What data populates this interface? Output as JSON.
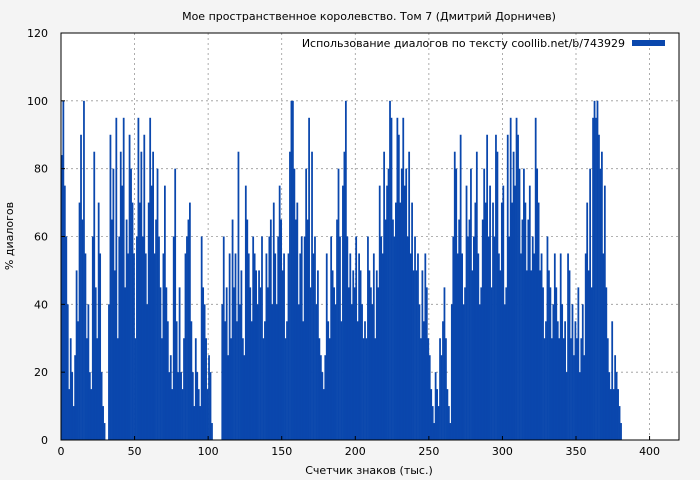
{
  "chart_data": {
    "type": "bar",
    "title": "Мое пространственное королевство. Том 7 (Дмитрий Дорничев)",
    "xlabel": "Счетчик знаков (тыс.)",
    "ylabel": "% диалогов",
    "xlim": [
      0,
      420
    ],
    "ylim": [
      0,
      120
    ],
    "x_ticks": [
      0,
      50,
      100,
      150,
      200,
      250,
      300,
      350,
      400
    ],
    "y_ticks": [
      0,
      20,
      40,
      60,
      80,
      100,
      120
    ],
    "grid": true,
    "legend_position": "top-right",
    "series": [
      {
        "name": "Использование диалогов по тексту coollib.net/b/743929",
        "color": "#0a47ad",
        "bin_width": 1,
        "values": [
          84,
          100,
          75,
          60,
          40,
          15,
          30,
          20,
          10,
          25,
          50,
          35,
          70,
          90,
          65,
          100,
          55,
          30,
          40,
          20,
          15,
          60,
          85,
          45,
          30,
          70,
          55,
          20,
          10,
          5,
          0,
          0,
          40,
          90,
          65,
          80,
          50,
          95,
          30,
          60,
          85,
          75,
          95,
          45,
          65,
          55,
          90,
          80,
          70,
          55,
          30,
          60,
          95,
          70,
          85,
          60,
          90,
          55,
          40,
          70,
          95,
          75,
          85,
          55,
          65,
          80,
          60,
          45,
          30,
          55,
          75,
          45,
          35,
          20,
          25,
          15,
          60,
          80,
          35,
          20,
          45,
          20,
          15,
          30,
          55,
          60,
          65,
          70,
          35,
          20,
          10,
          30,
          20,
          15,
          10,
          60,
          45,
          40,
          30,
          15,
          25,
          20,
          5,
          0,
          0,
          0,
          0,
          0,
          0,
          40,
          60,
          35,
          45,
          25,
          55,
          30,
          65,
          45,
          55,
          35,
          85,
          40,
          50,
          30,
          25,
          75,
          65,
          55,
          45,
          35,
          60,
          55,
          50,
          40,
          50,
          45,
          60,
          30,
          35,
          55,
          45,
          60,
          65,
          40,
          70,
          55,
          40,
          60,
          75,
          65,
          50,
          55,
          30,
          35,
          55,
          85,
          100,
          100,
          80,
          65,
          70,
          40,
          55,
          60,
          35,
          60,
          80,
          65,
          95,
          45,
          85,
          55,
          60,
          40,
          50,
          30,
          25,
          20,
          15,
          25,
          55,
          35,
          30,
          60,
          50,
          45,
          40,
          65,
          80,
          60,
          35,
          75,
          85,
          100,
          60,
          45,
          55,
          40,
          50,
          45,
          60,
          35,
          55,
          50,
          40,
          30,
          35,
          30,
          60,
          50,
          45,
          40,
          55,
          30,
          50,
          45,
          75,
          60,
          55,
          85,
          65,
          75,
          80,
          100,
          95,
          65,
          60,
          70,
          95,
          90,
          70,
          80,
          95,
          75,
          80,
          60,
          85,
          55,
          70,
          50,
          60,
          50,
          55,
          40,
          30,
          50,
          35,
          55,
          45,
          30,
          25,
          15,
          10,
          5,
          20,
          15,
          10,
          30,
          25,
          35,
          45,
          30,
          15,
          10,
          5,
          40,
          60,
          85,
          80,
          55,
          65,
          90,
          55,
          40,
          45,
          75,
          60,
          65,
          80,
          50,
          60,
          70,
          85,
          55,
          40,
          45,
          65,
          80,
          70,
          90,
          60,
          75,
          45,
          70,
          60,
          90,
          85,
          55,
          50,
          70,
          75,
          40,
          45,
          90,
          60,
          95,
          70,
          85,
          75,
          95,
          90,
          80,
          55,
          65,
          80,
          70,
          50,
          65,
          75,
          50,
          60,
          55,
          95,
          80,
          70,
          50,
          55,
          45,
          30,
          35,
          60,
          50,
          45,
          30,
          40,
          55,
          45,
          35,
          30,
          55,
          40,
          30,
          35,
          20,
          55,
          50,
          30,
          40,
          25,
          35,
          30,
          45,
          20,
          30,
          40,
          25,
          55,
          70,
          50,
          80,
          45,
          95,
          100,
          95,
          100,
          90,
          80,
          85,
          55,
          75,
          45,
          30,
          20,
          15,
          35,
          15,
          25,
          20,
          15,
          10,
          5
        ]
      }
    ]
  }
}
